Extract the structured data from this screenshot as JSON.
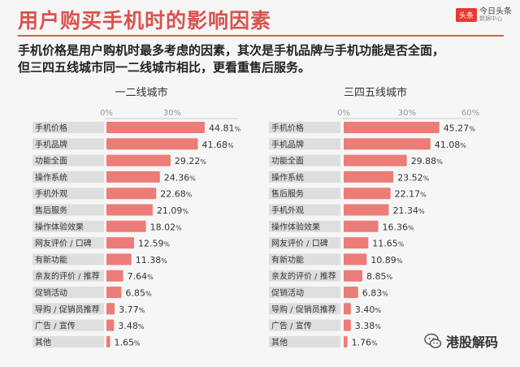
{
  "header": {
    "title": "用户购买手机时的影响因素",
    "brand_badge": "头条",
    "brand_name": "今日头条",
    "brand_sub": "数据中心"
  },
  "description": {
    "line1": "手机价格是用户购机时最多考虑的因素，其次是手机品牌与手机功能是否全面，",
    "line2": "但三四五线城市同一二线城市相比，更看重售后服务。"
  },
  "watermark": {
    "text": "港股解码"
  },
  "colors": {
    "accent": "#e05a50",
    "bar": "#ec7c77",
    "label_bg": "#dedede"
  },
  "chart_data": [
    {
      "type": "bar",
      "orientation": "horizontal",
      "title": "一二线城市",
      "ticks": [
        "0%",
        "30%"
      ],
      "xlim": [
        0,
        60
      ],
      "unit": "%",
      "categories": [
        "手机价格",
        "手机品牌",
        "功能全面",
        "操作系统",
        "手机外观",
        "售后服务",
        "操作体验效果",
        "网友评价 / 口碑",
        "有新功能",
        "亲友的评价 / 推荐",
        "促销活动",
        "导购 / 促销员推荐",
        "广告 / 宣传",
        "其他"
      ],
      "values": [
        44.81,
        41.68,
        29.22,
        24.36,
        22.68,
        21.09,
        18.02,
        12.59,
        11.38,
        7.64,
        6.85,
        3.77,
        3.48,
        1.65
      ]
    },
    {
      "type": "bar",
      "orientation": "horizontal",
      "title": "三四五线城市",
      "ticks": [
        "0%",
        "30%",
        "60%"
      ],
      "xlim": [
        0,
        60
      ],
      "unit": "%",
      "categories": [
        "手机价格",
        "手机品牌",
        "功能全面",
        "操作系统",
        "售后服务",
        "手机外观",
        "操作体验效果",
        "网友评价 / 口碑",
        "有新功能",
        "亲友的评价 / 推荐",
        "促销活动",
        "导购 / 促销员推荐",
        "广告 / 宣传",
        "其他"
      ],
      "values": [
        45.27,
        41.08,
        29.88,
        23.52,
        22.17,
        21.34,
        16.36,
        11.65,
        10.89,
        8.85,
        6.83,
        3.4,
        3.38,
        1.76
      ]
    }
  ]
}
